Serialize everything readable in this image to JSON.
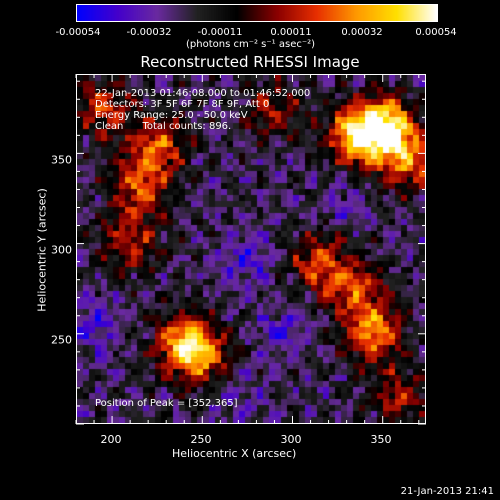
{
  "colorbar": {
    "ticks": [
      "-0.00054",
      "-0.00032",
      "-0.00011",
      "0.00011",
      "0.00032",
      "0.00054"
    ],
    "unit_label": "(photons cm⁻² s⁻¹ asec⁻²)",
    "colors": [
      "#0000ff",
      "#4400cc",
      "#6a2aa0",
      "#222222",
      "#000000",
      "#8a0000",
      "#e83000",
      "#ff9a00",
      "#ffe000",
      "#ffffff"
    ]
  },
  "title": "Reconstructed RHESSI Image",
  "overlay": {
    "line1": "22-Jan-2013 01:46:08.000 to 01:46:52.000",
    "line2": "Detectors: 3F 5F 6F 7F 8F 9F, Att 0",
    "line3": "Energy Range: 25.0 - 50.0 keV",
    "line4": "Clean      Total counts: 896.",
    "peak": "Position of Peak = [352,365]"
  },
  "xlabel": "Heliocentric X (arcsec)",
  "ylabel": "Heliocentric Y (arcsec)",
  "xticks": [
    "200",
    "250",
    "300",
    "350"
  ],
  "yticks": [
    "350",
    "300",
    "250"
  ],
  "timestamp": "21-Jan-2013 21:41",
  "chart_data": {
    "type": "heatmap",
    "title": "Reconstructed RHESSI Image",
    "xlabel": "Heliocentric X (arcsec)",
    "ylabel": "Heliocentric Y (arcsec)",
    "xlim": [
      180,
      374
    ],
    "ylim": [
      200,
      394
    ],
    "xtick_values": [
      200,
      250,
      300,
      350
    ],
    "ytick_values": [
      250,
      300,
      350
    ],
    "color_range": [
      -0.00054,
      0.00054
    ],
    "peak_position": [
      352,
      365
    ],
    "blobs": [
      {
        "x": 352,
        "y": 365,
        "strength": 1.0
      },
      {
        "x": 335,
        "y": 360,
        "strength": 0.8
      },
      {
        "x": 365,
        "y": 345,
        "strength": 0.6
      },
      {
        "x": 215,
        "y": 330,
        "strength": 0.55
      },
      {
        "x": 225,
        "y": 355,
        "strength": 0.6
      },
      {
        "x": 240,
        "y": 245,
        "strength": 0.75
      },
      {
        "x": 250,
        "y": 235,
        "strength": 0.5
      },
      {
        "x": 345,
        "y": 250,
        "strength": 0.7
      },
      {
        "x": 335,
        "y": 275,
        "strength": 0.5
      },
      {
        "x": 315,
        "y": 290,
        "strength": 0.55
      },
      {
        "x": 195,
        "y": 375,
        "strength": 0.5
      },
      {
        "x": 290,
        "y": 375,
        "strength": 0.4
      },
      {
        "x": 210,
        "y": 300,
        "strength": 0.45
      },
      {
        "x": 360,
        "y": 215,
        "strength": 0.4
      }
    ],
    "troughs": [
      {
        "x": 275,
        "y": 290,
        "strength": 0.7
      },
      {
        "x": 190,
        "y": 255,
        "strength": 0.6
      },
      {
        "x": 295,
        "y": 250,
        "strength": 0.55
      },
      {
        "x": 270,
        "y": 215,
        "strength": 0.4
      },
      {
        "x": 330,
        "y": 320,
        "strength": 0.35
      }
    ]
  }
}
